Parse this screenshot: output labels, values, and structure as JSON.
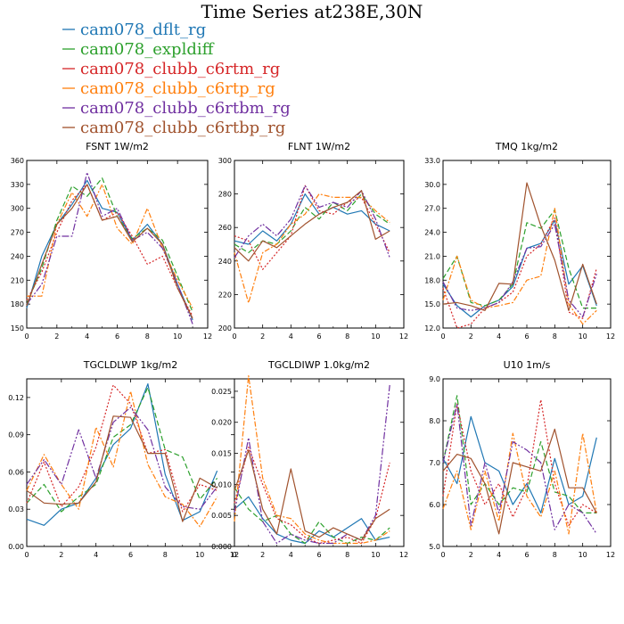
{
  "page": {
    "title": "Time Series at238E,30N"
  },
  "legend": [
    {
      "name": "cam078_dflt_rg",
      "color": "#1f77b4",
      "dash": ""
    },
    {
      "name": "cam078_expldiff",
      "color": "#2ca02c",
      "dash": "6 3"
    },
    {
      "name": "cam078_clubb_c6rtm_rg",
      "color": "#d62728",
      "dash": "2 2"
    },
    {
      "name": "cam078_clubb_c6rtp_rg",
      "color": "#ff7f0e",
      "dash": "6 2 2 2"
    },
    {
      "name": "cam078_clubb_c6rtbm_rg",
      "color": "#7030a0",
      "dash": "8 2 2 2 2 2"
    },
    {
      "name": "cam078_clubb_c6rtbp_rg",
      "color": "#a0522d",
      "dash": ""
    }
  ],
  "chart_data": [
    {
      "type": "line",
      "title": "FSNT  1W/m2",
      "x": [
        0,
        1,
        2,
        3,
        4,
        5,
        6,
        7,
        8,
        9,
        10,
        11
      ],
      "xlim": [
        0,
        12
      ],
      "xticks": [
        "0",
        "2",
        "4",
        "6",
        "8",
        "10",
        "12"
      ],
      "ylim": [
        150,
        360
      ],
      "yticks": [
        "150",
        "180",
        "210",
        "240",
        "270",
        "300",
        "330",
        "360"
      ],
      "series": [
        {
          "name": "cam078_dflt_rg",
          "values": [
            175,
            240,
            280,
            305,
            335,
            300,
            295,
            260,
            280,
            255,
            205,
            160
          ]
        },
        {
          "name": "cam078_expldiff",
          "values": [
            180,
            225,
            285,
            328,
            315,
            338,
            290,
            262,
            275,
            260,
            215,
            170
          ]
        },
        {
          "name": "cam078_clubb_c6rtm_rg",
          "values": [
            185,
            220,
            270,
            310,
            330,
            285,
            295,
            265,
            230,
            240,
            200,
            165
          ]
        },
        {
          "name": "cam078_clubb_c6rtp_rg",
          "values": [
            190,
            190,
            280,
            320,
            290,
            330,
            275,
            255,
            300,
            250,
            210,
            175
          ]
        },
        {
          "name": "cam078_clubb_c6rtbm_rg",
          "values": [
            180,
            205,
            265,
            265,
            345,
            290,
            300,
            260,
            270,
            250,
            205,
            155
          ]
        },
        {
          "name": "cam078_clubb_c6rtbp_rg",
          "values": [
            178,
            230,
            280,
            300,
            330,
            285,
            290,
            258,
            275,
            255,
            200,
            162
          ]
        }
      ]
    },
    {
      "type": "line",
      "title": "FLNT  1W/m2",
      "x": [
        0,
        1,
        2,
        3,
        4,
        5,
        6,
        7,
        8,
        9,
        10,
        11
      ],
      "xlim": [
        0,
        12
      ],
      "xticks": [
        "0",
        "2",
        "4",
        "6",
        "8",
        "10",
        "12"
      ],
      "ylim": [
        200,
        300
      ],
      "yticks": [
        "200",
        "220",
        "240",
        "260",
        "280",
        "300"
      ],
      "series": [
        {
          "name": "cam078_dflt_rg",
          "values": [
            252,
            250,
            258,
            252,
            262,
            280,
            268,
            272,
            268,
            270,
            262,
            258
          ]
        },
        {
          "name": "cam078_expldiff",
          "values": [
            250,
            245,
            252,
            250,
            258,
            272,
            265,
            275,
            270,
            280,
            268,
            262
          ]
        },
        {
          "name": "cam078_clubb_c6rtm_rg",
          "values": [
            255,
            252,
            235,
            245,
            255,
            285,
            270,
            268,
            275,
            278,
            262,
            245
          ]
        },
        {
          "name": "cam078_clubb_c6rtp_rg",
          "values": [
            245,
            215,
            245,
            250,
            262,
            268,
            280,
            278,
            278,
            278,
            270,
            263
          ]
        },
        {
          "name": "cam078_clubb_c6rtbm_rg",
          "values": [
            242,
            255,
            262,
            255,
            265,
            285,
            272,
            275,
            272,
            282,
            265,
            242
          ]
        },
        {
          "name": "cam078_clubb_c6rtbp_rg",
          "values": [
            248,
            240,
            252,
            248,
            255,
            262,
            268,
            272,
            275,
            282,
            253,
            258
          ]
        }
      ]
    },
    {
      "type": "line",
      "title": "TMQ  1kg/m2",
      "x": [
        0,
        1,
        2,
        3,
        4,
        5,
        6,
        7,
        8,
        9,
        10,
        11
      ],
      "xlim": [
        0,
        12
      ],
      "xticks": [
        "0",
        "2",
        "4",
        "6",
        "8",
        "10",
        "12"
      ],
      "ylim": [
        12,
        33
      ],
      "yticks": [
        "12.0",
        "15.0",
        "18.0",
        "21.0",
        "24.0",
        "27.0",
        "30.0",
        "33.0"
      ],
      "series": [
        {
          "name": "cam078_dflt_rg",
          "values": [
            17.5,
            14.8,
            13.4,
            14.8,
            15.5,
            17.2,
            22.0,
            22.6,
            25.5,
            17.5,
            19.8,
            14.8
          ]
        },
        {
          "name": "cam078_expldiff",
          "values": [
            18.2,
            21.0,
            15.2,
            14.8,
            15.5,
            17.5,
            25.2,
            24.5,
            26.8,
            19.5,
            14.5,
            14.5
          ]
        },
        {
          "name": "cam078_clubb_c6rtm_rg",
          "values": [
            17.0,
            12.0,
            12.5,
            14.5,
            15.2,
            16.5,
            21.0,
            22.5,
            25.8,
            14.0,
            13.2,
            19.5
          ]
        },
        {
          "name": "cam078_clubb_c6rtp_rg",
          "values": [
            15.5,
            21.0,
            15.5,
            14.5,
            14.8,
            15.2,
            18.0,
            18.5,
            27.0,
            15.0,
            12.5,
            14.2
          ]
        },
        {
          "name": "cam078_clubb_c6rtbm_rg",
          "values": [
            17.8,
            14.5,
            14.2,
            14.5,
            15.2,
            17.8,
            22.0,
            22.2,
            25.0,
            15.5,
            13.4,
            18.8
          ]
        },
        {
          "name": "cam078_clubb_c6rtbp_rg",
          "values": [
            15.0,
            15.2,
            14.8,
            14.2,
            17.6,
            17.5,
            30.2,
            24.8,
            20.5,
            14.2,
            20.0,
            15.0
          ]
        }
      ]
    },
    {
      "type": "line",
      "title": "TGCLDLWP  1kg/m2",
      "x": [
        0,
        1,
        2,
        3,
        4,
        5,
        6,
        7,
        8,
        9,
        10,
        11
      ],
      "xlim": [
        0,
        12
      ],
      "xticks": [
        "0",
        "2",
        "4",
        "6",
        "8",
        "10",
        "12"
      ],
      "ylim": [
        0,
        0.135
      ],
      "yticks": [
        "0.00",
        "0.03",
        "0.06",
        "0.09",
        "0.12"
      ],
      "series": [
        {
          "name": "cam078_dflt_rg",
          "values": [
            0.022,
            0.017,
            0.03,
            0.035,
            0.055,
            0.082,
            0.095,
            0.131,
            0.058,
            0.021,
            0.028,
            0.061
          ]
        },
        {
          "name": "cam078_expldiff",
          "values": [
            0.035,
            0.05,
            0.028,
            0.04,
            0.05,
            0.088,
            0.098,
            0.128,
            0.078,
            0.072,
            0.038,
            0.055
          ]
        },
        {
          "name": "cam078_clubb_c6rtm_rg",
          "values": [
            0.035,
            0.068,
            0.032,
            0.048,
            0.08,
            0.13,
            0.115,
            0.075,
            0.078,
            0.028,
            0.05,
            0.045
          ]
        },
        {
          "name": "cam078_clubb_c6rtp_rg",
          "values": [
            0.045,
            0.074,
            0.05,
            0.03,
            0.096,
            0.064,
            0.125,
            0.066,
            0.04,
            0.034,
            0.016,
            0.04
          ]
        },
        {
          "name": "cam078_clubb_c6rtbm_rg",
          "values": [
            0.05,
            0.07,
            0.05,
            0.094,
            0.055,
            0.1,
            0.112,
            0.094,
            0.048,
            0.032,
            0.03,
            0.048
          ]
        },
        {
          "name": "cam078_clubb_c6rtbp_rg",
          "values": [
            0.045,
            0.035,
            0.034,
            0.035,
            0.052,
            0.105,
            0.104,
            0.075,
            0.075,
            0.02,
            0.055,
            0.047
          ]
        }
      ]
    },
    {
      "type": "line",
      "title": "TGCLDIWP  1.0kg/m2",
      "x": [
        0,
        1,
        2,
        3,
        4,
        5,
        6,
        7,
        8,
        9,
        10,
        11
      ],
      "xlim": [
        0,
        12
      ],
      "xticks": [
        "0",
        "2",
        "4",
        "6",
        "8",
        "10",
        "12"
      ],
      "ylim": [
        0,
        0.027
      ],
      "yticks": [
        "0.000",
        "0.005",
        "0.010",
        "0.015",
        "0.020",
        "0.025"
      ],
      "series": [
        {
          "name": "cam078_dflt_rg",
          "values": [
            0.006,
            0.008,
            0.0045,
            0.002,
            0.001,
            0.0005,
            0.0025,
            0.0015,
            0.003,
            0.0045,
            0.001,
            0.0015
          ]
        },
        {
          "name": "cam078_expldiff",
          "values": [
            0.0095,
            0.006,
            0.004,
            0.005,
            0.002,
            0.0005,
            0.004,
            0.0015,
            0.0005,
            0.0015,
            0.001,
            0.003
          ]
        },
        {
          "name": "cam078_clubb_c6rtm_rg",
          "values": [
            0.007,
            0.016,
            0.01,
            0.0045,
            0.0035,
            0.0015,
            0.0005,
            0.001,
            0.0015,
            0.0005,
            0.0045,
            0.0135
          ]
        },
        {
          "name": "cam078_clubb_c6rtp_rg",
          "values": [
            0.004,
            0.0275,
            0.011,
            0.005,
            0.0045,
            0.002,
            0.001,
            0.0005,
            0.0005,
            0.0005,
            0.001,
            0.0025
          ]
        },
        {
          "name": "cam078_clubb_c6rtbm_rg",
          "values": [
            0.0055,
            0.0175,
            0.004,
            0.0005,
            0.002,
            0.001,
            0.0005,
            0.0005,
            0.002,
            0.001,
            0.005,
            0.026
          ]
        },
        {
          "name": "cam078_clubb_c6rtbp_rg",
          "values": [
            0.009,
            0.0155,
            0.006,
            0.002,
            0.0125,
            0.0025,
            0.0015,
            0.003,
            0.002,
            0.001,
            0.0045,
            0.006
          ]
        }
      ]
    },
    {
      "type": "line",
      "title": "U10  1m/s",
      "x": [
        0,
        1,
        2,
        3,
        4,
        5,
        6,
        7,
        8,
        9,
        10,
        11
      ],
      "xlim": [
        0,
        12
      ],
      "xticks": [
        "0",
        "2",
        "4",
        "6",
        "8",
        "10",
        "12"
      ],
      "ylim": [
        5,
        9
      ],
      "yticks": [
        "5.0",
        "6.0",
        "7.0",
        "8.0",
        "9.0"
      ],
      "series": [
        {
          "name": "cam078_dflt_rg",
          "values": [
            7.1,
            6.5,
            8.1,
            7.0,
            6.8,
            6.0,
            6.5,
            5.8,
            7.1,
            6.0,
            6.2,
            7.6
          ]
        },
        {
          "name": "cam078_expldiff",
          "values": [
            7.0,
            8.6,
            6.0,
            6.5,
            6.0,
            6.4,
            6.3,
            7.5,
            6.3,
            6.2,
            5.8,
            5.8
          ]
        },
        {
          "name": "cam078_clubb_c6rtm_rg",
          "values": [
            6.2,
            8.4,
            6.8,
            6.0,
            6.5,
            5.7,
            6.4,
            8.5,
            6.5,
            5.5,
            6.0,
            5.8
          ]
        },
        {
          "name": "cam078_clubb_c6rtp_rg",
          "values": [
            5.9,
            6.8,
            5.4,
            6.8,
            5.6,
            7.7,
            6.2,
            5.7,
            6.8,
            5.3,
            7.7,
            5.8
          ]
        },
        {
          "name": "cam078_clubb_c6rtbm_rg",
          "values": [
            7.0,
            8.4,
            5.5,
            7.0,
            5.8,
            7.5,
            7.3,
            7.0,
            5.4,
            6.0,
            5.8,
            5.3
          ]
        },
        {
          "name": "cam078_clubb_c6rtbp_rg",
          "values": [
            6.8,
            7.2,
            7.1,
            6.5,
            5.3,
            7.0,
            6.9,
            6.8,
            7.8,
            6.4,
            6.4,
            5.8
          ]
        }
      ]
    }
  ]
}
